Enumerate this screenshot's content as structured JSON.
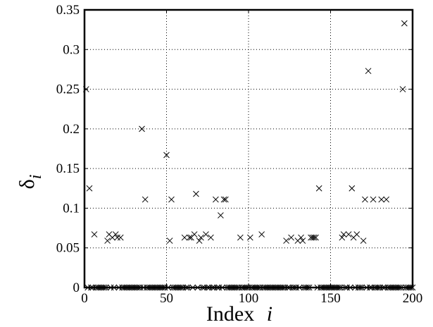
{
  "chart_data": {
    "type": "scatter",
    "xlabel": "Index",
    "xlabel_symbol": "i",
    "ylabel": "δ",
    "ylabel_subscript": "i",
    "xlim": [
      0,
      200
    ],
    "ylim": [
      0,
      0.35
    ],
    "xticks": [
      "0",
      "50",
      "100",
      "150",
      "200"
    ],
    "yticks": [
      "0",
      "0.05",
      "0.1",
      "0.15",
      "0.2",
      "0.25",
      "0.3",
      "0.35"
    ],
    "grid": true,
    "marker": "x",
    "series": [
      {
        "points": [
          [
            1,
            0.25
          ],
          [
            3,
            0.125
          ],
          [
            6,
            0.067
          ],
          [
            14,
            0.059
          ],
          [
            15,
            0.067
          ],
          [
            17,
            0.063
          ],
          [
            19,
            0.067
          ],
          [
            20,
            0.063
          ],
          [
            22,
            0.063
          ],
          [
            35,
            0.2
          ],
          [
            37,
            0.111
          ],
          [
            50,
            0.167
          ],
          [
            52,
            0.059
          ],
          [
            53,
            0.111
          ],
          [
            61,
            0.063
          ],
          [
            64,
            0.063
          ],
          [
            65,
            0.063
          ],
          [
            67,
            0.067
          ],
          [
            68,
            0.118
          ],
          [
            70,
            0.059
          ],
          [
            71,
            0.063
          ],
          [
            74,
            0.067
          ],
          [
            77,
            0.063
          ],
          [
            80,
            0.111
          ],
          [
            83,
            0.091
          ],
          [
            85,
            0.111
          ],
          [
            86,
            0.111
          ],
          [
            95,
            0.063
          ],
          [
            101,
            0.063
          ],
          [
            108,
            0.067
          ],
          [
            123,
            0.059
          ],
          [
            126,
            0.063
          ],
          [
            130,
            0.059
          ],
          [
            132,
            0.063
          ],
          [
            133,
            0.059
          ],
          [
            138,
            0.063
          ],
          [
            139,
            0.063
          ],
          [
            140,
            0.063
          ],
          [
            141,
            0.063
          ],
          [
            143,
            0.125
          ],
          [
            157,
            0.063
          ],
          [
            158,
            0.067
          ],
          [
            161,
            0.067
          ],
          [
            163,
            0.125
          ],
          [
            164,
            0.063
          ],
          [
            166,
            0.067
          ],
          [
            170,
            0.059
          ],
          [
            171,
            0.111
          ],
          [
            173,
            0.273
          ],
          [
            176,
            0.111
          ],
          [
            181,
            0.111
          ],
          [
            184,
            0.111
          ],
          [
            194,
            0.25
          ],
          [
            195,
            0.333
          ]
        ],
        "zero_range": [
          1,
          200
        ]
      }
    ]
  }
}
